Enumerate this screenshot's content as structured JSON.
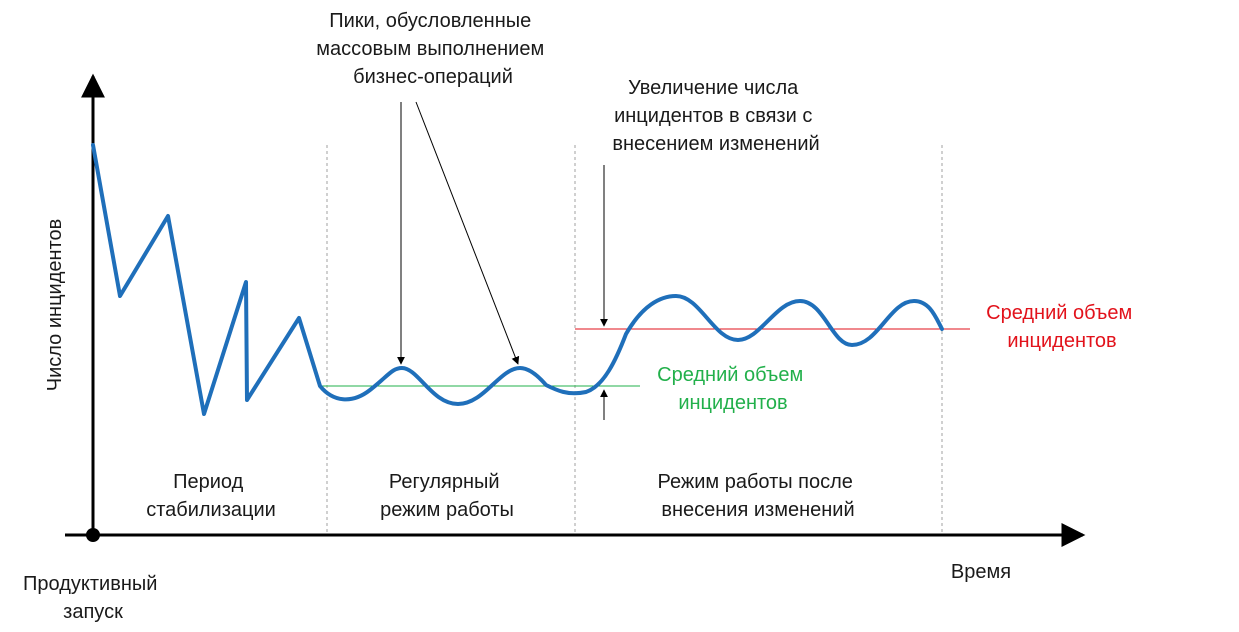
{
  "axes": {
    "y_label": "Число инцидентов",
    "x_label": "Время",
    "origin_label": [
      "Продуктивный",
      "запуск"
    ]
  },
  "periods": [
    {
      "lines": [
        "Период",
        "стабилизации"
      ]
    },
    {
      "lines": [
        "Регулярный",
        "режим работы"
      ]
    },
    {
      "lines": [
        "Режим работы после",
        "внесения изменений"
      ]
    }
  ],
  "annotations": {
    "peaks": [
      "Пики, обусловленные",
      "массовым выполнением",
      "бизнес-операций"
    ],
    "increase": [
      "Увеличение числа",
      "инцидентов в связи с",
      "внесением изменений"
    ]
  },
  "averages": {
    "regular": {
      "lines": [
        "Средний объем",
        "инцидентов"
      ],
      "color": "#22b04b"
    },
    "after_change": {
      "lines": [
        "Средний объем",
        "инцидентов"
      ],
      "color": "#e2121b"
    }
  },
  "colors": {
    "curve": "#1f6fba",
    "axis": "#000000",
    "divider": "#a0a0a0"
  }
}
